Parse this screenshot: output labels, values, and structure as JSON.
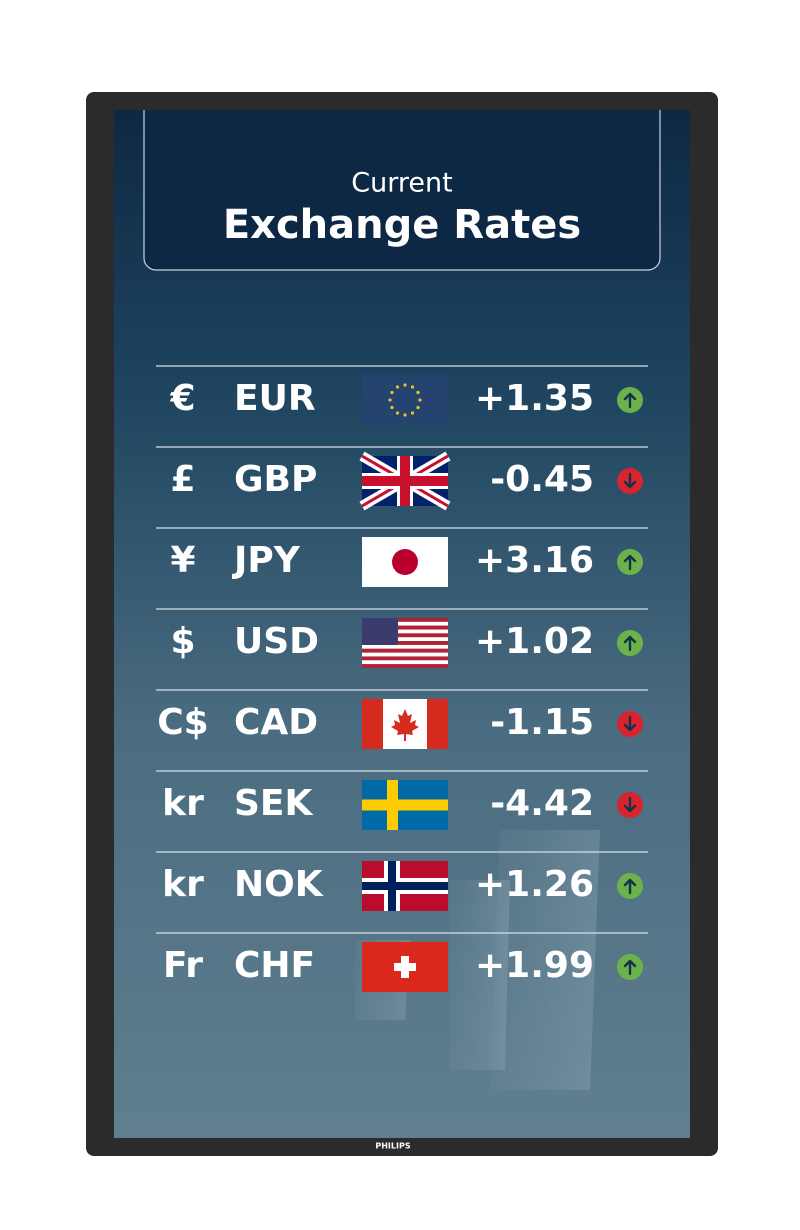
{
  "header": {
    "subtitle": "Current",
    "title": "Exchange Rates"
  },
  "rows": [
    {
      "symbol": "€",
      "code": "EUR",
      "change": "+1.35"
    },
    {
      "symbol": "£",
      "code": "GBP",
      "change": "-0.45"
    },
    {
      "symbol": "¥",
      "code": "JPY",
      "change": "+3.16"
    },
    {
      "symbol": "$",
      "code": "USD",
      "change": "+1.02"
    },
    {
      "symbol": "C$",
      "code": "CAD",
      "change": "-1.15"
    },
    {
      "symbol": "kr",
      "code": "SEK",
      "change": "-4.42"
    },
    {
      "symbol": "kr",
      "code": "NOK",
      "change": "+1.26"
    },
    {
      "symbol": "Fr",
      "code": "CHF",
      "change": "+1.99"
    }
  ],
  "brand": "PHILIPS"
}
